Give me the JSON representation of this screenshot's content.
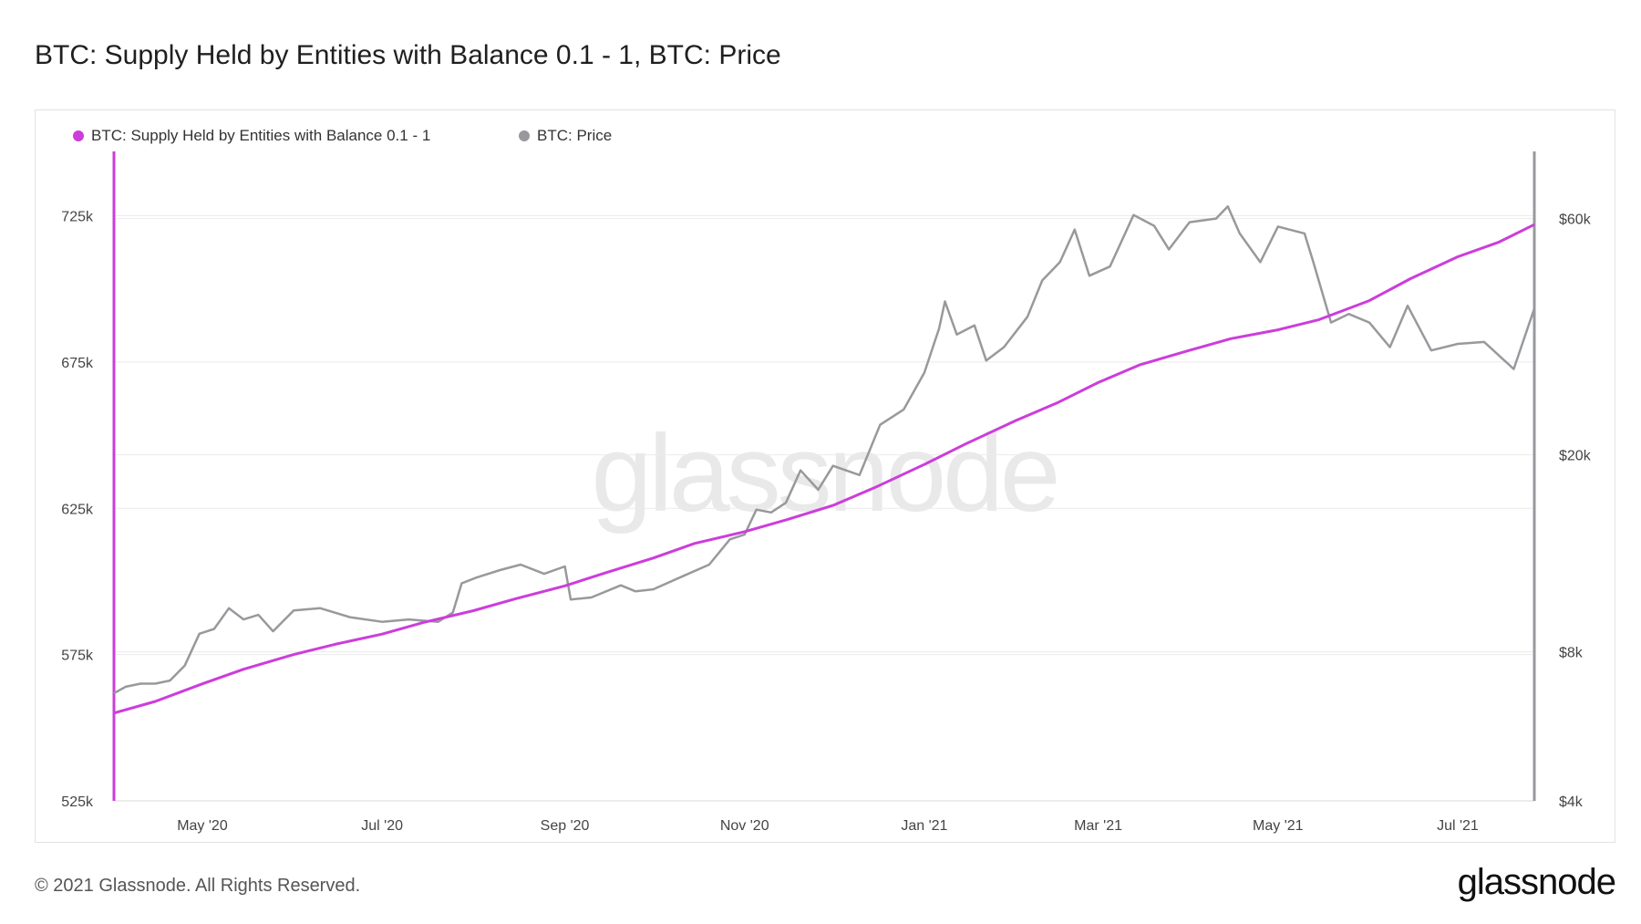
{
  "title": "BTC: Supply Held by Entities with Balance 0.1 - 1, BTC: Price",
  "watermark": "glassnode",
  "footer": {
    "copyright": "© 2021 Glassnode. All Rights Reserved.",
    "logo": "glassnode"
  },
  "colors": {
    "supply": "#cc3ddb",
    "price": "#97999c",
    "grid": "#ebebeb"
  },
  "chart_data": {
    "type": "line",
    "title": "BTC: Supply Held by Entities with Balance 0.1 - 1, BTC: Price",
    "legend_position": "top-left",
    "grid": true,
    "x_type": "date",
    "x_ticks": [
      {
        "date": "2020-05-01",
        "label": "May '20"
      },
      {
        "date": "2020-07-01",
        "label": "Jul '20"
      },
      {
        "date": "2020-09-01",
        "label": "Sep '20"
      },
      {
        "date": "2020-11-01",
        "label": "Nov '20"
      },
      {
        "date": "2021-01-01",
        "label": "Jan '21"
      },
      {
        "date": "2021-03-01",
        "label": "Mar '21"
      },
      {
        "date": "2021-05-01",
        "label": "May '21"
      },
      {
        "date": "2021-07-01",
        "label": "Jul '21"
      }
    ],
    "xlim": [
      "2020-04-01",
      "2021-07-27"
    ],
    "y_left": {
      "scale": "linear",
      "range": [
        525000,
        747000
      ],
      "ticks": [
        {
          "value": 525000,
          "label": "525k"
        },
        {
          "value": 575000,
          "label": "575k"
        },
        {
          "value": 625000,
          "label": "625k"
        },
        {
          "value": 675000,
          "label": "675k"
        },
        {
          "value": 725000,
          "label": "725k"
        }
      ]
    },
    "y_right": {
      "scale": "log",
      "range": [
        4000,
        82000
      ],
      "ticks": [
        {
          "value": 4000,
          "label": "$4k"
        },
        {
          "value": 8000,
          "label": "$8k"
        },
        {
          "value": 20000,
          "label": "$20k"
        },
        {
          "value": 60000,
          "label": "$60k"
        }
      ]
    },
    "series": [
      {
        "name": "BTC: Supply Held by Entities with Balance 0.1 - 1",
        "axis": "left",
        "points": [
          [
            "2020-04-01",
            555000
          ],
          [
            "2020-04-15",
            559000
          ],
          [
            "2020-05-01",
            565000
          ],
          [
            "2020-05-15",
            570000
          ],
          [
            "2020-06-01",
            575000
          ],
          [
            "2020-06-15",
            578500
          ],
          [
            "2020-07-01",
            582000
          ],
          [
            "2020-07-15",
            586000
          ],
          [
            "2020-08-01",
            590000
          ],
          [
            "2020-08-15",
            594000
          ],
          [
            "2020-09-01",
            598500
          ],
          [
            "2020-09-15",
            603000
          ],
          [
            "2020-10-01",
            608000
          ],
          [
            "2020-10-15",
            613000
          ],
          [
            "2020-11-01",
            617000
          ],
          [
            "2020-11-15",
            621000
          ],
          [
            "2020-12-01",
            626000
          ],
          [
            "2020-12-15",
            632000
          ],
          [
            "2021-01-01",
            640000
          ],
          [
            "2021-01-15",
            647000
          ],
          [
            "2021-02-01",
            655000
          ],
          [
            "2021-02-15",
            661000
          ],
          [
            "2021-03-01",
            668000
          ],
          [
            "2021-03-15",
            674000
          ],
          [
            "2021-04-01",
            679000
          ],
          [
            "2021-04-15",
            683000
          ],
          [
            "2021-05-01",
            686000
          ],
          [
            "2021-05-15",
            689500
          ],
          [
            "2021-06-01",
            696000
          ],
          [
            "2021-06-15",
            703500
          ],
          [
            "2021-07-01",
            711000
          ],
          [
            "2021-07-15",
            716000
          ],
          [
            "2021-07-27",
            722000
          ]
        ]
      },
      {
        "name": "BTC: Price",
        "axis": "right",
        "points": [
          [
            "2020-04-01",
            6600
          ],
          [
            "2020-04-05",
            6800
          ],
          [
            "2020-04-10",
            6900
          ],
          [
            "2020-04-15",
            6900
          ],
          [
            "2020-04-20",
            7000
          ],
          [
            "2020-04-25",
            7500
          ],
          [
            "2020-04-30",
            8700
          ],
          [
            "2020-05-05",
            8900
          ],
          [
            "2020-05-10",
            9800
          ],
          [
            "2020-05-15",
            9300
          ],
          [
            "2020-05-20",
            9500
          ],
          [
            "2020-05-25",
            8800
          ],
          [
            "2020-06-01",
            9700
          ],
          [
            "2020-06-10",
            9800
          ],
          [
            "2020-06-20",
            9400
          ],
          [
            "2020-07-01",
            9200
          ],
          [
            "2020-07-10",
            9300
          ],
          [
            "2020-07-20",
            9200
          ],
          [
            "2020-07-25",
            9600
          ],
          [
            "2020-07-28",
            11000
          ],
          [
            "2020-08-02",
            11300
          ],
          [
            "2020-08-10",
            11700
          ],
          [
            "2020-08-17",
            12000
          ],
          [
            "2020-08-25",
            11500
          ],
          [
            "2020-09-01",
            11900
          ],
          [
            "2020-09-03",
            10200
          ],
          [
            "2020-09-10",
            10300
          ],
          [
            "2020-09-20",
            10900
          ],
          [
            "2020-09-25",
            10600
          ],
          [
            "2020-10-01",
            10700
          ],
          [
            "2020-10-10",
            11300
          ],
          [
            "2020-10-20",
            12000
          ],
          [
            "2020-10-27",
            13500
          ],
          [
            "2020-11-01",
            13800
          ],
          [
            "2020-11-05",
            15500
          ],
          [
            "2020-11-10",
            15300
          ],
          [
            "2020-11-15",
            16000
          ],
          [
            "2020-11-20",
            18600
          ],
          [
            "2020-11-26",
            17000
          ],
          [
            "2020-12-01",
            19000
          ],
          [
            "2020-12-10",
            18200
          ],
          [
            "2020-12-17",
            23000
          ],
          [
            "2020-12-25",
            24700
          ],
          [
            "2021-01-01",
            29300
          ],
          [
            "2021-01-06",
            36000
          ],
          [
            "2021-01-08",
            40800
          ],
          [
            "2021-01-12",
            35000
          ],
          [
            "2021-01-18",
            36500
          ],
          [
            "2021-01-22",
            31000
          ],
          [
            "2021-01-28",
            33000
          ],
          [
            "2021-02-05",
            38000
          ],
          [
            "2021-02-10",
            45000
          ],
          [
            "2021-02-16",
            49000
          ],
          [
            "2021-02-21",
            57000
          ],
          [
            "2021-02-26",
            46000
          ],
          [
            "2021-03-05",
            48000
          ],
          [
            "2021-03-13",
            61000
          ],
          [
            "2021-03-20",
            58000
          ],
          [
            "2021-03-25",
            52000
          ],
          [
            "2021-04-01",
            59000
          ],
          [
            "2021-04-10",
            60000
          ],
          [
            "2021-04-14",
            63500
          ],
          [
            "2021-04-18",
            56000
          ],
          [
            "2021-04-25",
            49000
          ],
          [
            "2021-05-01",
            57800
          ],
          [
            "2021-05-10",
            56000
          ],
          [
            "2021-05-13",
            49000
          ],
          [
            "2021-05-19",
            37000
          ],
          [
            "2021-05-25",
            38500
          ],
          [
            "2021-06-01",
            37000
          ],
          [
            "2021-06-08",
            33000
          ],
          [
            "2021-06-14",
            40000
          ],
          [
            "2021-06-22",
            32500
          ],
          [
            "2021-07-01",
            33500
          ],
          [
            "2021-07-10",
            33800
          ],
          [
            "2021-07-20",
            29800
          ],
          [
            "2021-07-27",
            39500
          ]
        ]
      }
    ]
  }
}
